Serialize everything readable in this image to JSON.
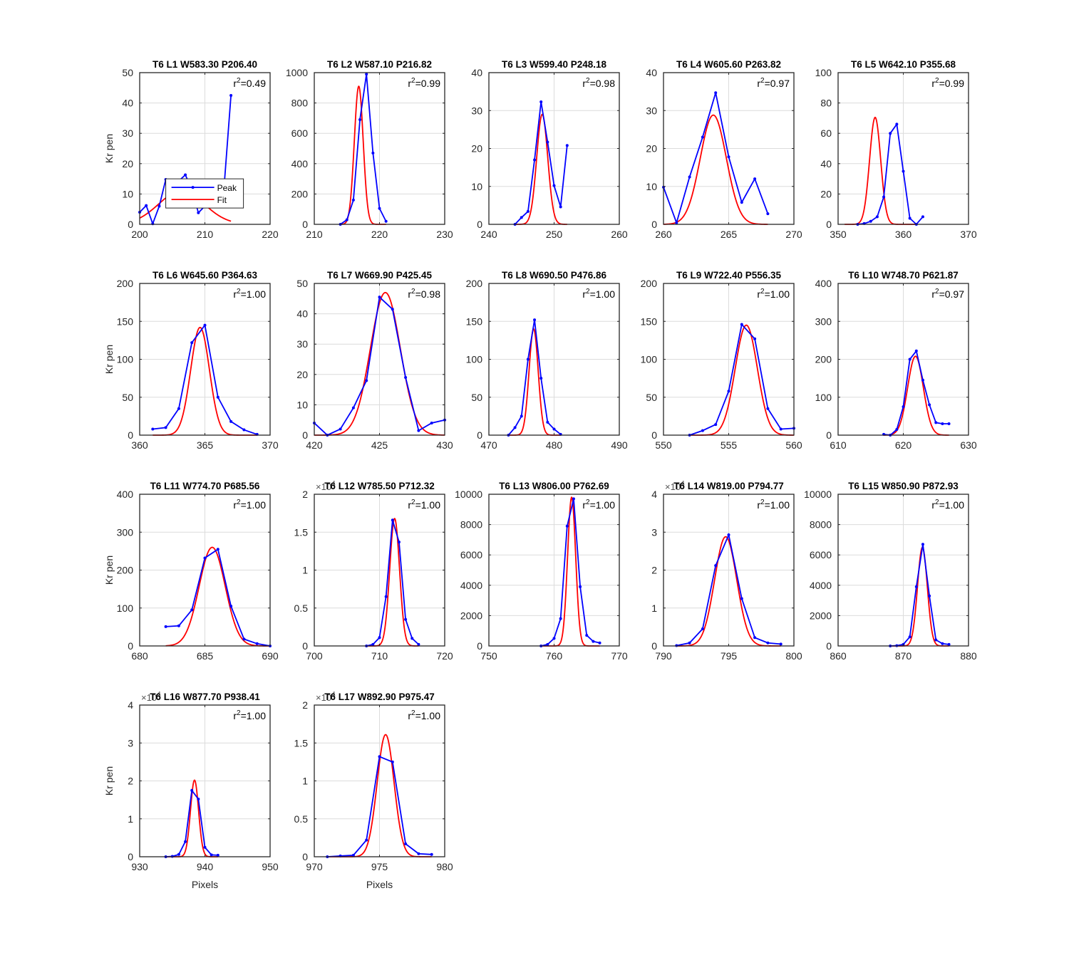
{
  "figure": {
    "legend": {
      "peak": "Peak",
      "fit": "Fit"
    },
    "colors": {
      "peak": "#0000ff",
      "fit": "#ff0000",
      "grid": "#dcdcdc",
      "axis": "#262626"
    }
  },
  "chart_data": [
    {
      "type": "line",
      "title": "T6 L1 W583.30 P206.40",
      "r2": "0.49",
      "ylabel": "Kr pen",
      "xlabel": "",
      "xlim": [
        200,
        220
      ],
      "ylim": [
        0,
        50
      ],
      "xticks": [
        200,
        210,
        220
      ],
      "yticks": [
        0,
        10,
        20,
        30,
        40,
        50
      ],
      "exponent": "",
      "legend": "inside-left",
      "series": [
        {
          "name": "Peak",
          "x": [
            200,
            201,
            202,
            203,
            204,
            205,
            206,
            207,
            208,
            209,
            210,
            211,
            212,
            213,
            214
          ],
          "y": [
            4,
            6.2,
            0.2,
            6,
            14.8,
            14.4,
            14.3,
            16.3,
            11.5,
            3.8,
            6,
            12,
            8.2,
            14,
            42.5
          ]
        },
        {
          "name": "Fit",
          "peak": {
            "c": 206.4,
            "a": 11,
            "s": 3.5
          },
          "range": [
            200,
            214
          ]
        }
      ]
    },
    {
      "type": "line",
      "title": "T6 L2 W587.10 P216.82",
      "r2": "0.99",
      "ylabel": "",
      "xlabel": "",
      "xlim": [
        210,
        230
      ],
      "ylim": [
        0,
        1000
      ],
      "xticks": [
        210,
        220,
        230
      ],
      "yticks": [
        0,
        200,
        400,
        600,
        800,
        1000
      ],
      "exponent": "",
      "series": [
        {
          "name": "Peak",
          "x": [
            214,
            215,
            216,
            217,
            218,
            219,
            220,
            221
          ],
          "y": [
            0,
            30,
            160,
            690,
            990,
            470,
            105,
            20
          ]
        },
        {
          "name": "Fit",
          "peak": {
            "c": 216.82,
            "a": 910,
            "s": 0.68
          },
          "range": [
            214,
            221
          ]
        }
      ]
    },
    {
      "type": "line",
      "title": "T6 L3 W599.40 P248.18",
      "r2": "0.98",
      "ylabel": "",
      "xlabel": "",
      "xlim": [
        240,
        260
      ],
      "ylim": [
        0,
        40
      ],
      "xticks": [
        240,
        250,
        260
      ],
      "yticks": [
        0,
        10,
        20,
        30,
        40
      ],
      "exponent": "",
      "series": [
        {
          "name": "Peak",
          "x": [
            244,
            245,
            246,
            247,
            248,
            249,
            250,
            251,
            252
          ],
          "y": [
            0,
            1.8,
            3.4,
            17,
            32.3,
            21.7,
            10.2,
            4.6,
            20.8
          ]
        },
        {
          "name": "Fit",
          "peak": {
            "c": 248.18,
            "a": 29,
            "s": 0.85
          },
          "range": [
            244,
            252
          ]
        }
      ]
    },
    {
      "type": "line",
      "title": "T6 L4 W605.60 P263.82",
      "r2": "0.97",
      "ylabel": "",
      "xlabel": "",
      "xlim": [
        260,
        270
      ],
      "ylim": [
        0,
        40
      ],
      "xticks": [
        260,
        265,
        270
      ],
      "yticks": [
        0,
        10,
        20,
        30,
        40
      ],
      "exponent": "",
      "series": [
        {
          "name": "Peak",
          "x": [
            260,
            261,
            262,
            263,
            264,
            265,
            266,
            267,
            268
          ],
          "y": [
            9.8,
            0.4,
            12.5,
            23,
            34.7,
            17.8,
            5.8,
            12,
            2.8
          ]
        },
        {
          "name": "Fit",
          "peak": {
            "c": 263.82,
            "a": 28.8,
            "s": 1.0
          },
          "range": [
            260,
            268
          ]
        }
      ]
    },
    {
      "type": "line",
      "title": "T6 L5 W642.10 P355.68",
      "r2": "0.99",
      "ylabel": "",
      "xlabel": "",
      "xlim": [
        350,
        370
      ],
      "ylim": [
        0,
        100
      ],
      "xticks": [
        350,
        360,
        370
      ],
      "yticks": [
        0,
        20,
        40,
        60,
        80,
        100
      ],
      "exponent": "",
      "series": [
        {
          "name": "Peak",
          "x": [
            353,
            354,
            355,
            356,
            357,
            358,
            359,
            360,
            361,
            362,
            363
          ],
          "y": [
            0,
            0.5,
            2,
            5,
            18,
            60,
            66,
            35,
            4,
            0,
            5
          ]
        },
        {
          "name": "Fit",
          "peak": {
            "c": 355.68,
            "a": 70.5,
            "s": 0.85
          },
          "range": [
            351,
            362
          ]
        }
      ]
    },
    {
      "type": "line",
      "title": "T6 L6 W645.60 P364.63",
      "r2": "1.00",
      "ylabel": "Kr pen",
      "xlabel": "",
      "xlim": [
        360,
        370
      ],
      "ylim": [
        0,
        200
      ],
      "xticks": [
        360,
        365,
        370
      ],
      "yticks": [
        0,
        50,
        100,
        150,
        200
      ],
      "exponent": "",
      "series": [
        {
          "name": "Peak",
          "x": [
            361,
            362,
            363,
            364,
            365,
            366,
            367,
            368,
            369
          ],
          "y": [
            8,
            10,
            35,
            122,
            145,
            50,
            18,
            7,
            1
          ]
        },
        {
          "name": "Fit",
          "peak": {
            "c": 364.63,
            "a": 142,
            "s": 0.72
          },
          "range": [
            361,
            369
          ]
        }
      ]
    },
    {
      "type": "line",
      "title": "T6 L7 W669.90 P425.45",
      "r2": "0.98",
      "ylabel": "",
      "xlabel": "",
      "xlim": [
        420,
        430
      ],
      "ylim": [
        0,
        50
      ],
      "xticks": [
        420,
        425,
        430
      ],
      "yticks": [
        0,
        10,
        20,
        30,
        40,
        50
      ],
      "exponent": "",
      "series": [
        {
          "name": "Peak",
          "x": [
            420,
            421,
            422,
            423,
            424,
            425,
            426,
            427,
            428,
            429,
            430
          ],
          "y": [
            4,
            0,
            2,
            9,
            18,
            45.5,
            41.5,
            19,
            1.5,
            4,
            5
          ]
        },
        {
          "name": "Fit",
          "peak": {
            "c": 425.45,
            "a": 47,
            "s": 1.15
          },
          "range": [
            420,
            430
          ]
        }
      ]
    },
    {
      "type": "line",
      "title": "T6 L8 W690.50 P476.86",
      "r2": "1.00",
      "ylabel": "",
      "xlabel": "",
      "xlim": [
        470,
        490
      ],
      "ylim": [
        0,
        200
      ],
      "xticks": [
        470,
        480,
        490
      ],
      "yticks": [
        0,
        50,
        100,
        150,
        200
      ],
      "exponent": "",
      "series": [
        {
          "name": "Peak",
          "x": [
            473,
            474,
            475,
            476,
            477,
            478,
            479,
            480,
            481
          ],
          "y": [
            0,
            10,
            25,
            100,
            152,
            75,
            17,
            8,
            1
          ]
        },
        {
          "name": "Fit",
          "peak": {
            "c": 476.86,
            "a": 140,
            "s": 0.7
          },
          "range": [
            473,
            481
          ]
        }
      ]
    },
    {
      "type": "line",
      "title": "T6 L9 W722.40 P556.35",
      "r2": "1.00",
      "ylabel": "",
      "xlabel": "",
      "xlim": [
        550,
        560
      ],
      "ylim": [
        0,
        200
      ],
      "xticks": [
        550,
        555,
        560
      ],
      "yticks": [
        0,
        50,
        100,
        150,
        200
      ],
      "exponent": "",
      "series": [
        {
          "name": "Peak",
          "x": [
            552,
            553,
            554,
            555,
            556,
            557,
            558,
            559,
            560
          ],
          "y": [
            0,
            6,
            14,
            58,
            146,
            127,
            35,
            8,
            9
          ]
        },
        {
          "name": "Fit",
          "peak": {
            "c": 556.35,
            "a": 145,
            "s": 0.85
          },
          "range": [
            552,
            560
          ]
        }
      ]
    },
    {
      "type": "line",
      "title": "T6 L10 W748.70 P621.87",
      "r2": "0.97",
      "ylabel": "",
      "xlabel": "",
      "xlim": [
        610,
        630
      ],
      "ylim": [
        0,
        400
      ],
      "xticks": [
        610,
        620,
        630
      ],
      "yticks": [
        0,
        100,
        200,
        300,
        400
      ],
      "exponent": "",
      "series": [
        {
          "name": "Peak",
          "x": [
            617,
            618,
            619,
            620,
            621,
            622,
            623,
            624,
            625,
            626,
            627
          ],
          "y": [
            2,
            0,
            15,
            75,
            200,
            222,
            145,
            80,
            33,
            30,
            30
          ]
        },
        {
          "name": "Fit",
          "peak": {
            "c": 621.87,
            "a": 208,
            "s": 1.2
          },
          "range": [
            617,
            627
          ]
        }
      ]
    },
    {
      "type": "line",
      "title": "T6 L11 W774.70 P685.56",
      "r2": "1.00",
      "ylabel": "Kr pen",
      "xlabel": "",
      "xlim": [
        680,
        690
      ],
      "ylim": [
        0,
        400
      ],
      "xticks": [
        680,
        685,
        690
      ],
      "yticks": [
        0,
        100,
        200,
        300,
        400
      ],
      "exponent": "",
      "series": [
        {
          "name": "Peak",
          "x": [
            682,
            683,
            684,
            685,
            686,
            687,
            688,
            689,
            690
          ],
          "y": [
            51,
            53,
            95,
            232,
            255,
            105,
            18,
            6,
            0
          ]
        },
        {
          "name": "Fit",
          "peak": {
            "c": 685.56,
            "a": 260,
            "s": 1.0
          },
          "range": [
            682,
            690
          ]
        }
      ]
    },
    {
      "type": "line",
      "title": "T6 L12 W785.50 P712.32",
      "r2": "1.00",
      "ylabel": "",
      "xlabel": "",
      "xlim": [
        700,
        720
      ],
      "ylim": [
        0,
        2
      ],
      "xticks": [
        700,
        710,
        720
      ],
      "yticks": [
        0,
        0.5,
        1,
        1.5,
        2
      ],
      "exponent": "4",
      "series": [
        {
          "name": "Peak",
          "x": [
            708,
            709,
            710,
            711,
            712,
            713,
            714,
            715,
            716
          ],
          "y": [
            0.0,
            0.02,
            0.11,
            0.65,
            1.66,
            1.37,
            0.35,
            0.1,
            0.02
          ]
        },
        {
          "name": "Fit",
          "peak": {
            "c": 712.32,
            "a": 1.68,
            "s": 0.75
          },
          "range": [
            708,
            716
          ]
        }
      ]
    },
    {
      "type": "line",
      "title": "T6 L13 W806.00 P762.69",
      "r2": "1.00",
      "ylabel": "",
      "xlabel": "",
      "xlim": [
        750,
        770
      ],
      "ylim": [
        0,
        10000
      ],
      "xticks": [
        750,
        760,
        770
      ],
      "yticks": [
        0,
        2000,
        4000,
        6000,
        8000,
        10000
      ],
      "exponent": "",
      "series": [
        {
          "name": "Peak",
          "x": [
            758,
            759,
            760,
            761,
            762,
            763,
            764,
            765,
            766,
            767
          ],
          "y": [
            0,
            100,
            500,
            1800,
            7900,
            9700,
            3900,
            700,
            300,
            200
          ]
        },
        {
          "name": "Fit",
          "peak": {
            "c": 762.69,
            "a": 9800,
            "s": 0.62
          },
          "range": [
            758,
            767
          ]
        }
      ]
    },
    {
      "type": "line",
      "title": "T6 L14 W819.00 P794.77",
      "r2": "1.00",
      "ylabel": "",
      "xlabel": "",
      "xlim": [
        790,
        800
      ],
      "ylim": [
        0,
        4
      ],
      "xticks": [
        790,
        795,
        800
      ],
      "yticks": [
        0,
        1,
        2,
        3,
        4
      ],
      "exponent": "4",
      "series": [
        {
          "name": "Peak",
          "x": [
            791,
            792,
            793,
            794,
            795,
            796,
            797,
            798,
            799
          ],
          "y": [
            0.01,
            0.08,
            0.45,
            2.12,
            2.93,
            1.25,
            0.22,
            0.08,
            0.05
          ]
        },
        {
          "name": "Fit",
          "peak": {
            "c": 794.77,
            "a": 2.88,
            "s": 0.85
          },
          "range": [
            791,
            799
          ]
        }
      ]
    },
    {
      "type": "line",
      "title": "T6 L15 W850.90 P872.93",
      "r2": "1.00",
      "ylabel": "",
      "xlabel": "",
      "xlim": [
        860,
        880
      ],
      "ylim": [
        0,
        10000
      ],
      "xticks": [
        860,
        870,
        880
      ],
      "yticks": [
        0,
        2000,
        4000,
        6000,
        8000,
        10000
      ],
      "exponent": "",
      "series": [
        {
          "name": "Peak",
          "x": [
            868,
            869,
            870,
            871,
            872,
            873,
            874,
            875,
            876,
            877
          ],
          "y": [
            0,
            20,
            100,
            600,
            3900,
            6700,
            3300,
            400,
            150,
            100
          ]
        },
        {
          "name": "Fit",
          "peak": {
            "c": 872.93,
            "a": 6500,
            "s": 0.75
          },
          "range": [
            868,
            877
          ]
        }
      ]
    },
    {
      "type": "line",
      "title": "T6 L16 W877.70 P938.41",
      "r2": "1.00",
      "ylabel": "Kr pen",
      "xlabel": "Pixels",
      "xlim": [
        930,
        950
      ],
      "ylim": [
        0,
        4
      ],
      "xticks": [
        930,
        940,
        950
      ],
      "yticks": [
        0,
        1,
        2,
        3,
        4
      ],
      "exponent": "4",
      "series": [
        {
          "name": "Peak",
          "x": [
            934,
            935,
            936,
            937,
            938,
            939,
            940,
            941,
            942
          ],
          "y": [
            0,
            0.01,
            0.06,
            0.4,
            1.75,
            1.52,
            0.25,
            0.05,
            0.04
          ]
        },
        {
          "name": "Fit",
          "peak": {
            "c": 938.41,
            "a": 2.02,
            "s": 0.62
          },
          "range": [
            934,
            942
          ]
        }
      ]
    },
    {
      "type": "line",
      "title": "T6 L17 W892.90 P975.47",
      "r2": "1.00",
      "ylabel": "",
      "xlabel": "Pixels",
      "xlim": [
        970,
        980
      ],
      "ylim": [
        0,
        2
      ],
      "xticks": [
        970,
        975,
        980
      ],
      "yticks": [
        0,
        0.5,
        1,
        1.5,
        2
      ],
      "exponent": "4",
      "series": [
        {
          "name": "Peak",
          "x": [
            971,
            972,
            973,
            974,
            975,
            976,
            977,
            978,
            979
          ],
          "y": [
            0.0,
            0.01,
            0.02,
            0.22,
            1.32,
            1.25,
            0.17,
            0.04,
            0.03
          ]
        },
        {
          "name": "Fit",
          "peak": {
            "c": 975.47,
            "a": 1.61,
            "s": 0.65
          },
          "range": [
            971,
            979
          ]
        }
      ]
    }
  ]
}
